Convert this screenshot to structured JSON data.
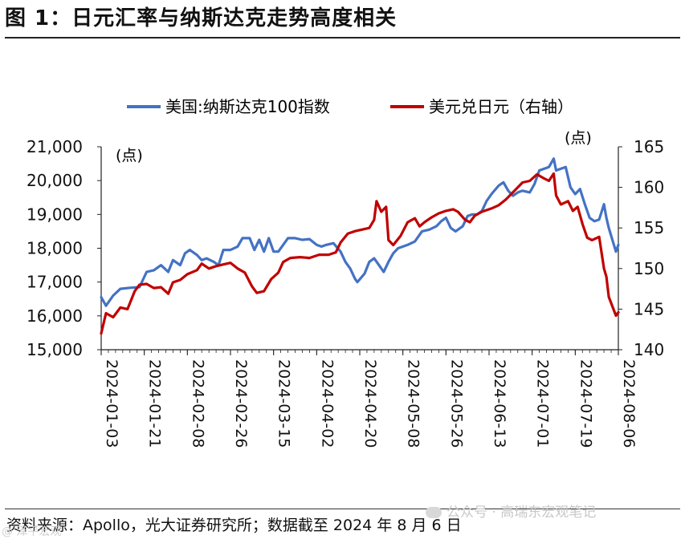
{
  "title": "图 1：日元汇率与纳斯达克走势高度相关",
  "source": "资料来源：Apollo，光大证券研究所；数据截至 2024 年 8 月 6 日",
  "watermark": "公众号 · 高瑞东宏观笔记",
  "watermark_mark": "@ 泽平宏观",
  "colors": {
    "series_left": "#4472C4",
    "series_right": "#C00000",
    "axis": "#222222"
  },
  "chart_data": {
    "type": "line",
    "legend_position": "top",
    "grid": false,
    "left_axis_unit": "(点)",
    "right_axis_unit": "(点)",
    "ylim_left": [
      15000,
      21000
    ],
    "ylim_right": [
      140,
      165
    ],
    "yticks_left": [
      "15,000",
      "16,000",
      "17,000",
      "18,000",
      "19,000",
      "20,000",
      "21,000"
    ],
    "yticks_right": [
      "140",
      "145",
      "150",
      "155",
      "160",
      "165"
    ],
    "xlim": [
      "2024-01-03",
      "2024-08-06"
    ],
    "x_tick_labels": [
      "2024-01-03",
      "2024-01-21",
      "2024-02-08",
      "2024-02-26",
      "2024-03-15",
      "2024-04-02",
      "2024-04-20",
      "2024-05-08",
      "2024-05-26",
      "2024-06-13",
      "2024-07-01",
      "2024-07-19",
      "2024-08-06"
    ],
    "series": [
      {
        "name": "美国:纳斯达克100指数",
        "axis": "left",
        "points": [
          [
            "2024-01-03",
            16550
          ],
          [
            "2024-01-05",
            16300
          ],
          [
            "2024-01-08",
            16600
          ],
          [
            "2024-01-11",
            16800
          ],
          [
            "2024-01-15",
            16830
          ],
          [
            "2024-01-19",
            16850
          ],
          [
            "2024-01-22",
            17300
          ],
          [
            "2024-01-25",
            17350
          ],
          [
            "2024-01-28",
            17500
          ],
          [
            "2024-01-31",
            17300
          ],
          [
            "2024-02-02",
            17650
          ],
          [
            "2024-02-05",
            17500
          ],
          [
            "2024-02-07",
            17850
          ],
          [
            "2024-02-09",
            17950
          ],
          [
            "2024-02-12",
            17800
          ],
          [
            "2024-02-14",
            17650
          ],
          [
            "2024-02-16",
            17700
          ],
          [
            "2024-02-19",
            17600
          ],
          [
            "2024-02-21",
            17500
          ],
          [
            "2024-02-23",
            17950
          ],
          [
            "2024-02-26",
            17950
          ],
          [
            "2024-02-29",
            18050
          ],
          [
            "2024-03-02",
            18300
          ],
          [
            "2024-03-05",
            18300
          ],
          [
            "2024-03-07",
            17950
          ],
          [
            "2024-03-09",
            18250
          ],
          [
            "2024-03-11",
            17900
          ],
          [
            "2024-03-13",
            18300
          ],
          [
            "2024-03-15",
            17900
          ],
          [
            "2024-03-17",
            17900
          ],
          [
            "2024-03-19",
            18100
          ],
          [
            "2024-03-21",
            18300
          ],
          [
            "2024-03-24",
            18300
          ],
          [
            "2024-03-27",
            18250
          ],
          [
            "2024-03-30",
            18270
          ],
          [
            "2024-04-02",
            18100
          ],
          [
            "2024-04-04",
            18050
          ],
          [
            "2024-04-06",
            18100
          ],
          [
            "2024-04-09",
            18150
          ],
          [
            "2024-04-12",
            17900
          ],
          [
            "2024-04-14",
            17600
          ],
          [
            "2024-04-16",
            17400
          ],
          [
            "2024-04-18",
            17100
          ],
          [
            "2024-04-19",
            17000
          ],
          [
            "2024-04-22",
            17250
          ],
          [
            "2024-04-24",
            17600
          ],
          [
            "2024-04-26",
            17700
          ],
          [
            "2024-04-28",
            17500
          ],
          [
            "2024-04-30",
            17300
          ],
          [
            "2024-05-02",
            17600
          ],
          [
            "2024-05-04",
            17850
          ],
          [
            "2024-05-06",
            18000
          ],
          [
            "2024-05-08",
            18050
          ],
          [
            "2024-05-10",
            18100
          ],
          [
            "2024-05-13",
            18200
          ],
          [
            "2024-05-16",
            18500
          ],
          [
            "2024-05-19",
            18550
          ],
          [
            "2024-05-22",
            18650
          ],
          [
            "2024-05-24",
            18800
          ],
          [
            "2024-05-26",
            18900
          ],
          [
            "2024-05-28",
            18600
          ],
          [
            "2024-05-30",
            18500
          ],
          [
            "2024-06-02",
            18650
          ],
          [
            "2024-06-04",
            18950
          ],
          [
            "2024-06-06",
            19000
          ],
          [
            "2024-06-08",
            19000
          ],
          [
            "2024-06-10",
            19100
          ],
          [
            "2024-06-12",
            19400
          ],
          [
            "2024-06-14",
            19600
          ],
          [
            "2024-06-17",
            19850
          ],
          [
            "2024-06-19",
            19950
          ],
          [
            "2024-06-21",
            19700
          ],
          [
            "2024-06-23",
            19550
          ],
          [
            "2024-06-25",
            19650
          ],
          [
            "2024-06-27",
            19700
          ],
          [
            "2024-06-30",
            19650
          ],
          [
            "2024-07-02",
            19900
          ],
          [
            "2024-07-04",
            20300
          ],
          [
            "2024-07-06",
            20350
          ],
          [
            "2024-07-08",
            20400
          ],
          [
            "2024-07-10",
            20650
          ],
          [
            "2024-07-11",
            20300
          ],
          [
            "2024-07-13",
            20350
          ],
          [
            "2024-07-15",
            20400
          ],
          [
            "2024-07-17",
            19800
          ],
          [
            "2024-07-19",
            19600
          ],
          [
            "2024-07-21",
            19750
          ],
          [
            "2024-07-23",
            19300
          ],
          [
            "2024-07-25",
            18900
          ],
          [
            "2024-07-27",
            18800
          ],
          [
            "2024-07-29",
            18850
          ],
          [
            "2024-07-31",
            19300
          ],
          [
            "2024-08-01",
            18900
          ],
          [
            "2024-08-02",
            18600
          ],
          [
            "2024-08-05",
            17900
          ],
          [
            "2024-08-06",
            18100
          ]
        ]
      },
      {
        "name": "美元兑日元（右轴）",
        "axis": "right",
        "points": [
          [
            "2024-01-03",
            142.0
          ],
          [
            "2024-01-05",
            144.5
          ],
          [
            "2024-01-08",
            144.0
          ],
          [
            "2024-01-11",
            145.2
          ],
          [
            "2024-01-14",
            145.0
          ],
          [
            "2024-01-17",
            147.2
          ],
          [
            "2024-01-19",
            148.0
          ],
          [
            "2024-01-22",
            148.1
          ],
          [
            "2024-01-25",
            147.6
          ],
          [
            "2024-01-28",
            147.7
          ],
          [
            "2024-01-31",
            146.9
          ],
          [
            "2024-02-02",
            148.3
          ],
          [
            "2024-02-05",
            148.6
          ],
          [
            "2024-02-08",
            149.3
          ],
          [
            "2024-02-12",
            149.8
          ],
          [
            "2024-02-14",
            150.6
          ],
          [
            "2024-02-17",
            150.0
          ],
          [
            "2024-02-20",
            150.3
          ],
          [
            "2024-02-23",
            150.5
          ],
          [
            "2024-02-26",
            150.7
          ],
          [
            "2024-02-29",
            150.0
          ],
          [
            "2024-03-03",
            149.5
          ],
          [
            "2024-03-06",
            147.8
          ],
          [
            "2024-03-08",
            147.0
          ],
          [
            "2024-03-11",
            147.2
          ],
          [
            "2024-03-14",
            148.7
          ],
          [
            "2024-03-17",
            149.5
          ],
          [
            "2024-03-19",
            150.8
          ],
          [
            "2024-03-22",
            151.3
          ],
          [
            "2024-03-26",
            151.4
          ],
          [
            "2024-03-30",
            151.3
          ],
          [
            "2024-04-03",
            151.7
          ],
          [
            "2024-04-07",
            151.7
          ],
          [
            "2024-04-10",
            152.0
          ],
          [
            "2024-04-12",
            153.2
          ],
          [
            "2024-04-15",
            154.3
          ],
          [
            "2024-04-18",
            154.6
          ],
          [
            "2024-04-21",
            154.8
          ],
          [
            "2024-04-24",
            155.0
          ],
          [
            "2024-04-26",
            156.0
          ],
          [
            "2024-04-27",
            158.3
          ],
          [
            "2024-04-29",
            157.0
          ],
          [
            "2024-05-01",
            157.6
          ],
          [
            "2024-05-02",
            153.5
          ],
          [
            "2024-05-04",
            152.9
          ],
          [
            "2024-05-07",
            154.0
          ],
          [
            "2024-05-10",
            155.7
          ],
          [
            "2024-05-13",
            156.2
          ],
          [
            "2024-05-15",
            155.2
          ],
          [
            "2024-05-17",
            155.7
          ],
          [
            "2024-05-20",
            156.3
          ],
          [
            "2024-05-23",
            156.8
          ],
          [
            "2024-05-26",
            157.1
          ],
          [
            "2024-05-29",
            157.3
          ],
          [
            "2024-05-31",
            157.0
          ],
          [
            "2024-06-03",
            156.0
          ],
          [
            "2024-06-05",
            155.7
          ],
          [
            "2024-06-07",
            156.5
          ],
          [
            "2024-06-10",
            157.0
          ],
          [
            "2024-06-14",
            157.4
          ],
          [
            "2024-06-17",
            157.8
          ],
          [
            "2024-06-20",
            158.5
          ],
          [
            "2024-06-24",
            159.7
          ],
          [
            "2024-06-27",
            160.6
          ],
          [
            "2024-06-30",
            160.8
          ],
          [
            "2024-07-03",
            161.6
          ],
          [
            "2024-07-06",
            161.1
          ],
          [
            "2024-07-08",
            160.8
          ],
          [
            "2024-07-10",
            161.7
          ],
          [
            "2024-07-11",
            159.0
          ],
          [
            "2024-07-13",
            157.9
          ],
          [
            "2024-07-16",
            158.3
          ],
          [
            "2024-07-18",
            157.1
          ],
          [
            "2024-07-20",
            157.6
          ],
          [
            "2024-07-22",
            155.5
          ],
          [
            "2024-07-24",
            153.8
          ],
          [
            "2024-07-26",
            153.5
          ],
          [
            "2024-07-29",
            153.9
          ],
          [
            "2024-07-31",
            150.0
          ],
          [
            "2024-08-01",
            149.0
          ],
          [
            "2024-08-02",
            146.5
          ],
          [
            "2024-08-05",
            144.2
          ],
          [
            "2024-08-06",
            144.6
          ]
        ]
      }
    ]
  }
}
